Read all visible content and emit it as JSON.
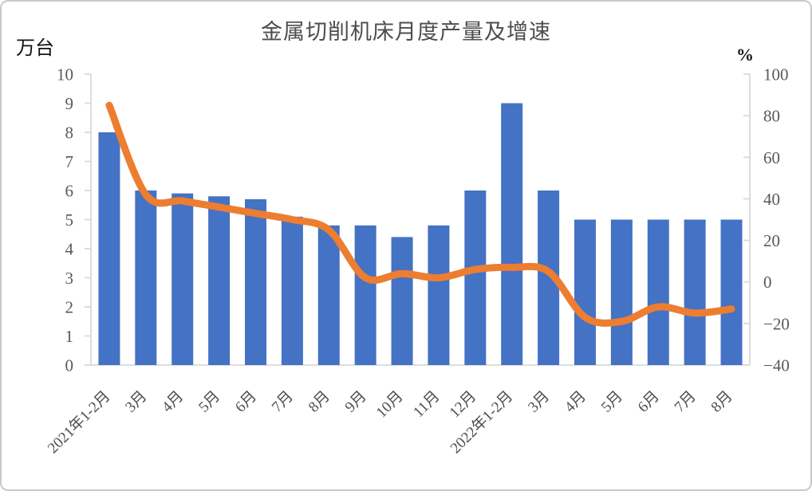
{
  "frame": {
    "background": "#ffffff",
    "border_color": "#c9c9c9"
  },
  "chart_data": {
    "type": "bar",
    "combo": "bar+line",
    "title": "金属切削机床月度产量及增速",
    "grid": "off",
    "legend": "none",
    "categories": [
      "2021年1-2月",
      "3月",
      "4月",
      "5月",
      "6月",
      "7月",
      "8月",
      "9月",
      "10月",
      "11月",
      "12月",
      "2022年1-2月",
      "3月",
      "4月",
      "5月",
      "6月",
      "7月",
      "8月"
    ],
    "series": [
      {
        "name": "月度产量",
        "type": "bar",
        "axis": "left",
        "color": "#4472C4",
        "values": [
          8.0,
          6.0,
          5.9,
          5.8,
          5.7,
          5.1,
          4.8,
          4.8,
          4.4,
          4.8,
          6.0,
          9.0,
          6.0,
          5.0,
          5.0,
          5.0,
          5.0,
          5.0
        ]
      },
      {
        "name": "增速",
        "type": "line",
        "axis": "right",
        "color": "#ED7D31",
        "values": [
          85,
          42,
          39,
          36,
          33,
          30,
          25,
          2,
          4,
          2,
          6,
          7,
          5,
          -17,
          -19,
          -12,
          -15,
          -13
        ]
      }
    ],
    "left_axis": {
      "unit": "万台",
      "min": 0,
      "max": 10,
      "step": 1,
      "tick_labels": [
        "0",
        "1",
        "2",
        "3",
        "4",
        "5",
        "6",
        "7",
        "8",
        "9",
        "10"
      ]
    },
    "right_axis": {
      "unit": "%",
      "min": -40,
      "max": 100,
      "step": 20,
      "tick_labels": [
        "−40",
        "−20",
        "0",
        "20",
        "40",
        "60",
        "80",
        "100"
      ]
    },
    "colors": {
      "axis_line": "#d9d9d9",
      "tick_label": "#595959",
      "category_label": "#4d4d4d",
      "title": "#4d4d4d"
    }
  }
}
